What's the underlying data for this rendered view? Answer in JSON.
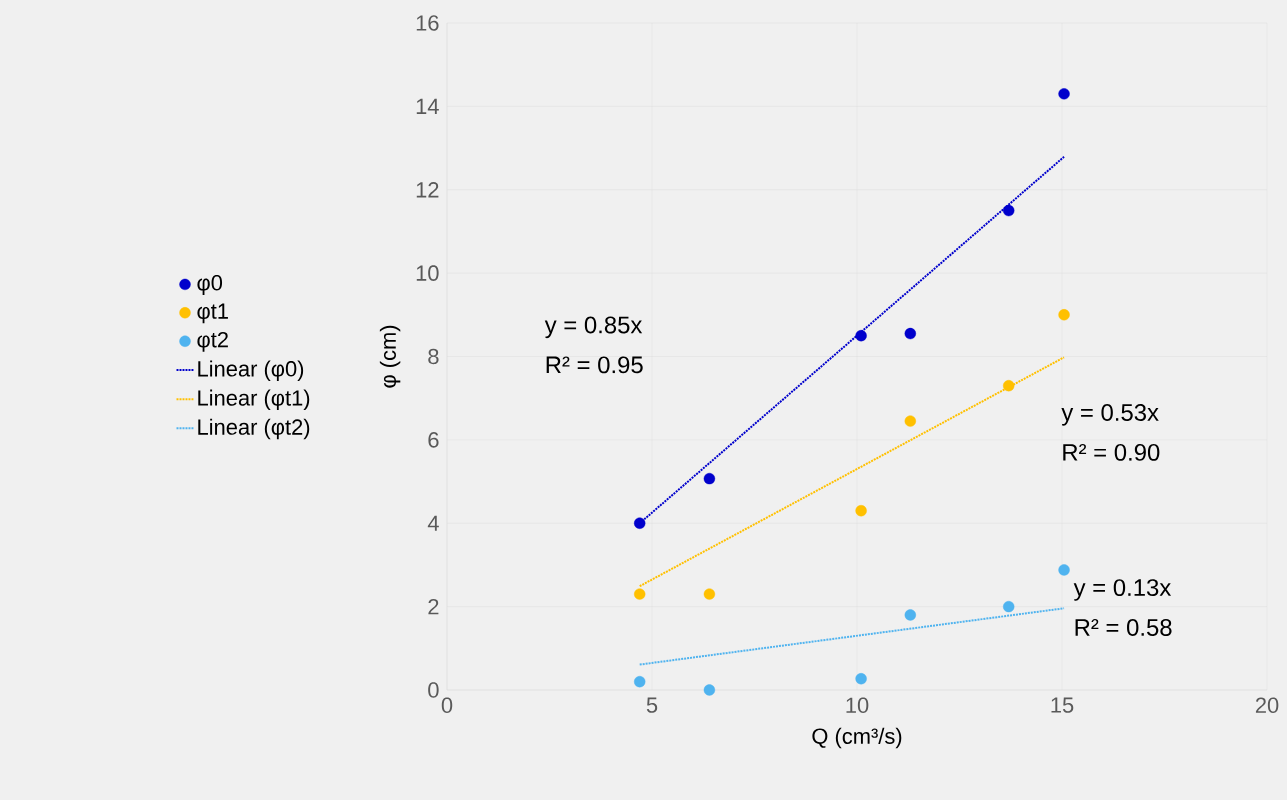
{
  "chart_data": {
    "type": "scatter",
    "xlabel": "Q  (cm³/s)",
    "ylabel": "φ (cm)",
    "xlim": [
      0,
      20
    ],
    "ylim": [
      0,
      16
    ],
    "xticks": [
      0,
      5,
      10,
      15,
      20
    ],
    "yticks": [
      0,
      2,
      4,
      6,
      8,
      10,
      12,
      14,
      16
    ],
    "grid": true,
    "legend": "left",
    "marker": "circle",
    "series": [
      {
        "name": "φ0",
        "color": "#0000cc",
        "x": [
          4.7,
          6.4,
          10.1,
          11.3,
          13.7,
          15.05
        ],
        "values": [
          4.0,
          5.07,
          8.5,
          8.55,
          11.5,
          14.3
        ]
      },
      {
        "name": "φt1",
        "color": "#ffc000",
        "x": [
          4.7,
          6.4,
          10.1,
          11.3,
          13.7,
          15.05
        ],
        "values": [
          2.3,
          2.3,
          4.3,
          6.45,
          7.3,
          9.0
        ]
      },
      {
        "name": "φt2",
        "color": "#4fb3ef",
        "x": [
          4.7,
          6.4,
          10.1,
          11.3,
          13.7,
          15.05
        ],
        "values": [
          0.2,
          0.0,
          0.27,
          1.8,
          2.0,
          2.88
        ]
      },
      {
        "name": "Linear (φ0)",
        "type": "line",
        "marker": "none",
        "line_style": "dotted",
        "color": "#0000cc",
        "x": [
          4.7,
          15.05
        ],
        "values": [
          4.0,
          12.79
        ]
      },
      {
        "name": "Linear (φt1)",
        "type": "line",
        "marker": "none",
        "line_style": "dotted",
        "color": "#ffc000",
        "x": [
          4.7,
          15.05
        ],
        "values": [
          2.49,
          7.98
        ]
      },
      {
        "name": "Linear (φt2)",
        "type": "line",
        "marker": "none",
        "line_style": "dotted",
        "color": "#4fb3ef",
        "x": [
          4.7,
          15.05
        ],
        "values": [
          0.61,
          1.96
        ]
      }
    ],
    "annotations": [
      "y = 0.85x",
      "R² = 0.95",
      "y = 0.53x",
      "R² = 0.90",
      "y = 0.13x",
      "R² = 0.58"
    ]
  }
}
